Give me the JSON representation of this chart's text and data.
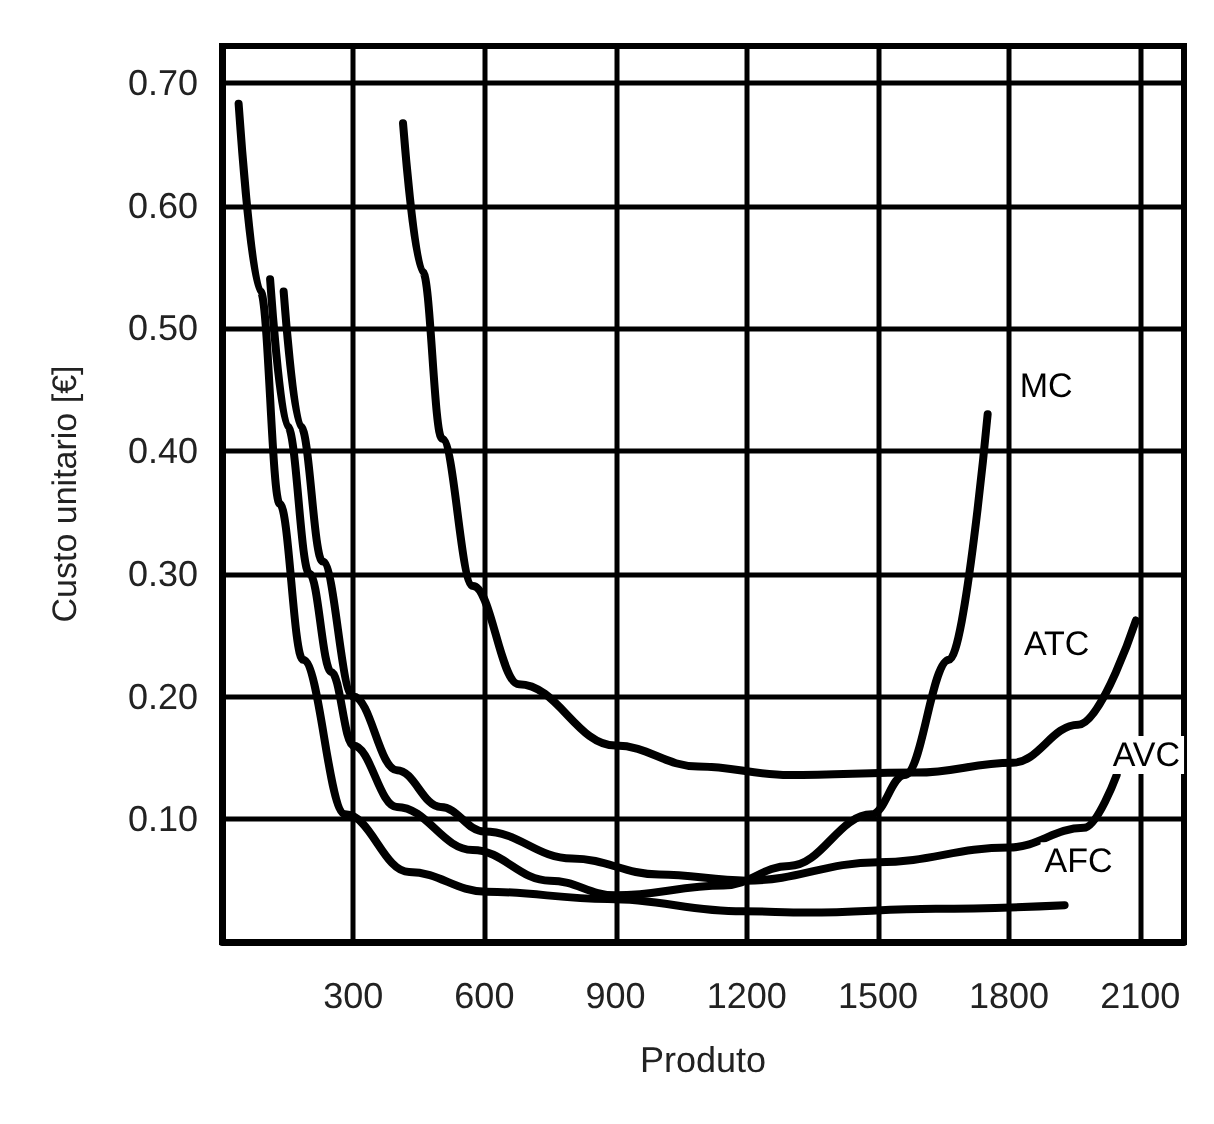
{
  "chart_data": {
    "type": "line",
    "xlabel": "Produto",
    "ylabel": "Custo unitario [€]",
    "xlim": [
      0,
      2200
    ],
    "ylim": [
      0,
      0.73
    ],
    "xticks": [
      300,
      600,
      900,
      1200,
      1500,
      1800,
      2100
    ],
    "yticks": [
      {
        "value": 0.1,
        "label": "0.10"
      },
      {
        "value": 0.2,
        "label": "0.20"
      },
      {
        "value": 0.3,
        "label": "0.30"
      },
      {
        "value": 0.4,
        "label": "0.40"
      },
      {
        "value": 0.5,
        "label": "0.50"
      },
      {
        "value": 0.6,
        "label": "0.60"
      },
      {
        "value": 0.7,
        "label": "0.70"
      }
    ],
    "grid": true,
    "legend": false,
    "marker": "none",
    "line_style": "solid",
    "series": [
      {
        "name": "MC",
        "color": "#000000",
        "x": [
          110,
          150,
          200,
          250,
          300,
          400,
          573,
          750,
          900,
          1147,
          1297,
          1486,
          1561,
          1663,
          1751
        ],
        "values": [
          0.54,
          0.42,
          0.3,
          0.22,
          0.16,
          0.11,
          0.075,
          0.05,
          0.038,
          0.046,
          0.062,
          0.104,
          0.136,
          0.23,
          0.43
        ]
      },
      {
        "name": "ATC",
        "color": "#000000",
        "x": [
          414,
          459,
          503,
          574,
          679,
          900,
          1089,
          1297,
          1588,
          1808,
          1958,
          2090
        ],
        "values": [
          0.667,
          0.546,
          0.41,
          0.29,
          0.21,
          0.16,
          0.143,
          0.136,
          0.138,
          0.146,
          0.177,
          0.262
        ]
      },
      {
        "name": "AVC",
        "color": "#000000",
        "x": [
          141,
          180,
          230,
          300,
          400,
          500,
          600,
          800,
          1000,
          1200,
          1500,
          1800,
          1971,
          2046
        ],
        "values": [
          0.53,
          0.42,
          0.31,
          0.2,
          0.14,
          0.11,
          0.09,
          0.068,
          0.055,
          0.05,
          0.065,
          0.077,
          0.093,
          0.136
        ]
      },
      {
        "name": "AFC",
        "color": "#000000",
        "x": [
          38,
          88,
          132,
          185,
          282,
          428,
          604,
          882,
          1191,
          1340,
          1632,
          1927
        ],
        "values": [
          0.683,
          0.53,
          0.357,
          0.23,
          0.104,
          0.057,
          0.041,
          0.035,
          0.025,
          0.024,
          0.027,
          0.03
        ]
      }
    ]
  }
}
